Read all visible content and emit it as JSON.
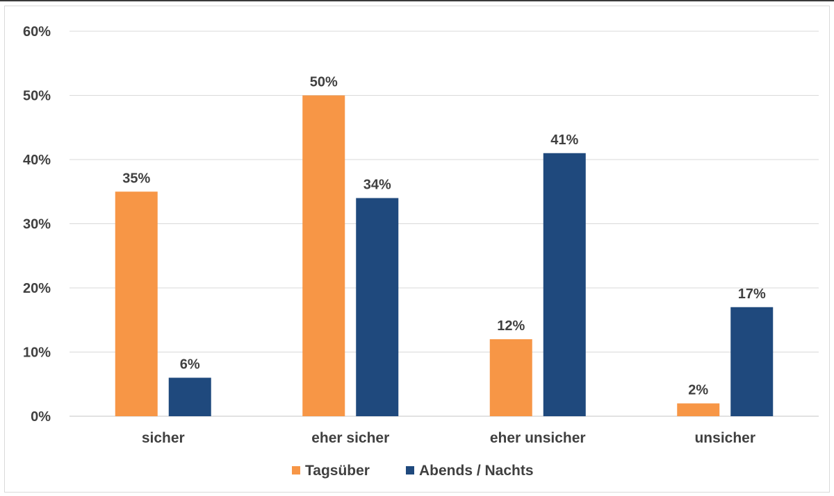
{
  "chart_data": {
    "type": "bar",
    "title": "",
    "xlabel": "",
    "ylabel": "",
    "categories": [
      "sicher",
      "eher sicher",
      "eher unsicher",
      "unsicher"
    ],
    "series": [
      {
        "name": "Tagsüber",
        "color": "#f79646",
        "values": [
          35,
          50,
          12,
          2
        ],
        "value_labels": [
          "35%",
          "50%",
          "12%",
          "2%"
        ]
      },
      {
        "name": "Abends / Nachts",
        "color": "#1f497d",
        "values": [
          6,
          34,
          41,
          17
        ],
        "value_labels": [
          "6%",
          "34%",
          "41%",
          "17%"
        ]
      }
    ],
    "ylim": [
      0,
      60
    ],
    "yticks": [
      0,
      10,
      20,
      30,
      40,
      50,
      60
    ],
    "ytick_labels": [
      "0%",
      "10%",
      "20%",
      "30%",
      "40%",
      "50%",
      "60%"
    ],
    "grid": true,
    "legend_position": "bottom-center"
  },
  "colors": {
    "gridline": "#d9d9d9",
    "text": "#404040"
  }
}
